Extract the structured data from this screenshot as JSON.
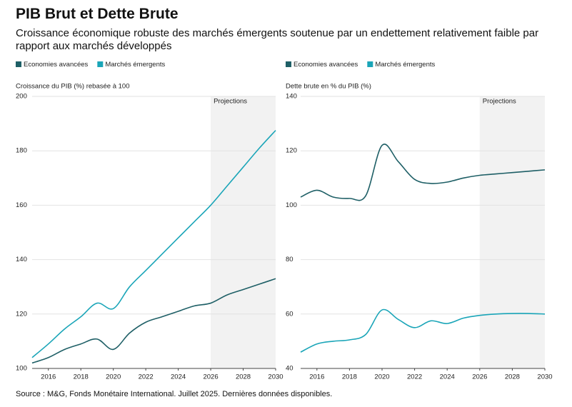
{
  "title": "PIB Brut et Dette Brute",
  "subtitle": "Croissance économique robuste des marchés émergents soutenue par un endettement relativement faible par rapport aux marchés développés",
  "source": "Source : M&G, Fonds Monétaire International. Juillet 2025. Dernières données disponibles.",
  "chart_data": [
    {
      "type": "line",
      "ylabel": "Croissance du PIB (%) rebasée à 100",
      "x": [
        2015,
        2016,
        2017,
        2018,
        2019,
        2020,
        2021,
        2022,
        2023,
        2024,
        2025,
        2026,
        2027,
        2028,
        2029,
        2030
      ],
      "series": [
        {
          "name": "Economies avancées",
          "color": "#1e5f66",
          "values": [
            102,
            104,
            107,
            109,
            110.8,
            107,
            113,
            117,
            119,
            121,
            123,
            124,
            127,
            129,
            131,
            133
          ]
        },
        {
          "name": "Marchés émergents",
          "color": "#1aa5b8",
          "values": [
            104,
            109,
            114.5,
            119,
            124,
            122,
            130,
            136,
            142,
            148,
            154,
            160,
            167,
            174,
            181,
            187.5
          ]
        }
      ],
      "xlim": [
        2015,
        2030
      ],
      "xticks": [
        2016,
        2018,
        2020,
        2022,
        2024,
        2026,
        2028,
        2030
      ],
      "ylim": [
        100,
        200
      ],
      "yticks": [
        100,
        120,
        140,
        160,
        180,
        200
      ],
      "projection_start": 2026,
      "projection_label": "Projections",
      "grid": true,
      "legend": "top-left"
    },
    {
      "type": "line",
      "ylabel": "Dette brute en % du PIB (%)",
      "x": [
        2015,
        2016,
        2017,
        2018,
        2019,
        2020,
        2021,
        2022,
        2023,
        2024,
        2025,
        2026,
        2027,
        2028,
        2029,
        2030
      ],
      "series": [
        {
          "name": "Economies avancées",
          "color": "#1e5f66",
          "values": [
            103,
            105.5,
            103,
            102.5,
            103.5,
            122,
            116,
            109.5,
            108,
            108.5,
            110,
            111,
            111.5,
            112,
            112.5,
            113
          ]
        },
        {
          "name": "Marchés émergents",
          "color": "#1aa5b8",
          "values": [
            46,
            49,
            50,
            50.5,
            52.5,
            61.5,
            58,
            55,
            57.5,
            56.5,
            58.5,
            59.5,
            60,
            60.2,
            60.2,
            60
          ]
        }
      ],
      "xlim": [
        2015,
        2030
      ],
      "xticks": [
        2016,
        2018,
        2020,
        2022,
        2024,
        2026,
        2028,
        2030
      ],
      "ylim": [
        40,
        140
      ],
      "yticks": [
        40,
        60,
        80,
        100,
        120,
        140
      ],
      "projection_start": 2026,
      "projection_label": "Projections",
      "grid": true,
      "legend": "top-left"
    }
  ]
}
